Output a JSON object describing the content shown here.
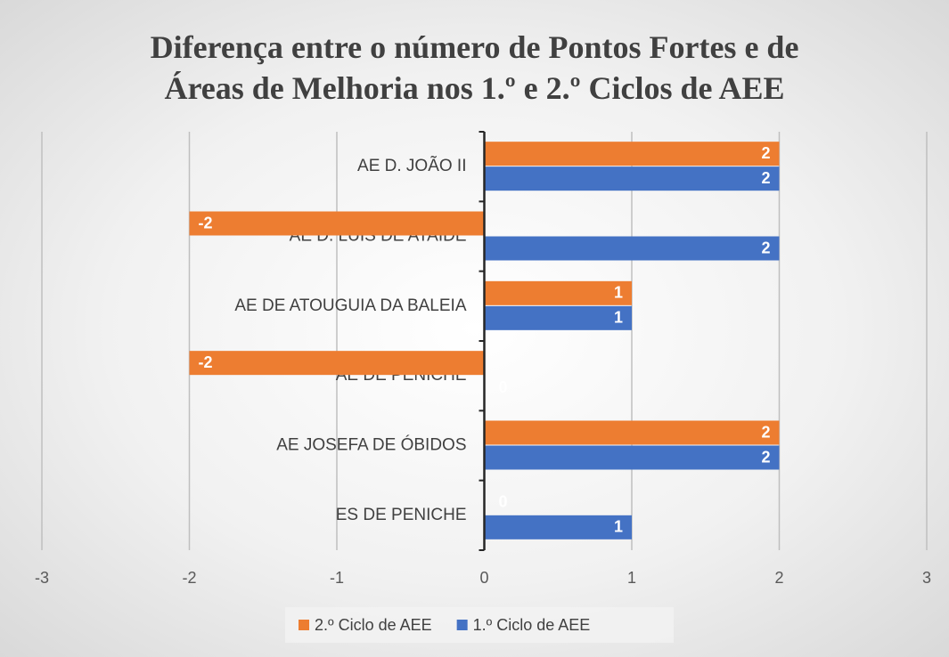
{
  "chart_data": {
    "type": "hbar",
    "title": "Diferença entre o número de Pontos Fortes e de Áreas de Melhoria nos 1.º e 2.º Ciclos de AEE",
    "categories": [
      "AE D. JOÃO II",
      "AE D. LUÍS DE ATAÍDE",
      "AE DE ATOUGUIA DA BALEIA",
      "AE DE PENICHE",
      "AE JOSEFA DE ÓBIDOS",
      "ES DE PENICHE"
    ],
    "series": [
      {
        "name": "2.º Ciclo de AEE",
        "color": "#ed7d31",
        "values": [
          2,
          -2,
          1,
          -2,
          2,
          0
        ]
      },
      {
        "name": "1.º Ciclo de AEE",
        "color": "#4472c4",
        "values": [
          2,
          2,
          1,
          0,
          2,
          1
        ]
      }
    ],
    "xlim": [
      -3,
      3
    ],
    "xticks": [
      -3,
      -2,
      -1,
      0,
      1,
      2,
      3
    ],
    "grid": true,
    "legend": "bottom"
  }
}
